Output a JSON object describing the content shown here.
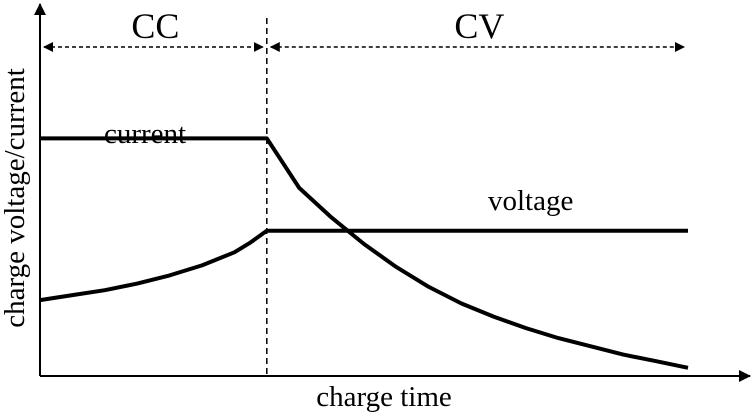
{
  "chart_data": {
    "type": "line",
    "title": "",
    "xlabel": "charge time",
    "ylabel": "charge voltage/current",
    "xlim": [
      0,
      10
    ],
    "ylim": [
      0,
      10
    ],
    "grid": false,
    "legend": "none",
    "phases": [
      {
        "label": "CC",
        "start": 0,
        "end": 3.5
      },
      {
        "label": "CV",
        "start": 3.5,
        "end": 10
      }
    ],
    "phase_boundary": 3.5,
    "series": [
      {
        "name": "current",
        "color": "#000000",
        "x": [
          0,
          0.5,
          1,
          1.5,
          2,
          2.5,
          3,
          3.5,
          3.7,
          4,
          4.5,
          5,
          5.5,
          6,
          6.5,
          7,
          7.5,
          8,
          8.5,
          9,
          9.5,
          10
        ],
        "y": [
          7.2,
          7.2,
          7.2,
          7.2,
          7.2,
          7.2,
          7.2,
          7.2,
          6.6,
          5.7,
          4.8,
          4.0,
          3.3,
          2.7,
          2.2,
          1.8,
          1.45,
          1.15,
          0.9,
          0.65,
          0.45,
          0.25
        ]
      },
      {
        "name": "voltage",
        "color": "#000000",
        "x": [
          0,
          0.5,
          1,
          1.5,
          2,
          2.5,
          3,
          3.25,
          3.5,
          4,
          5,
          6,
          7,
          8,
          9,
          10
        ],
        "y": [
          2.3,
          2.45,
          2.6,
          2.8,
          3.05,
          3.35,
          3.75,
          4.05,
          4.4,
          4.4,
          4.4,
          4.4,
          4.4,
          4.4,
          4.4,
          4.4
        ]
      }
    ]
  }
}
